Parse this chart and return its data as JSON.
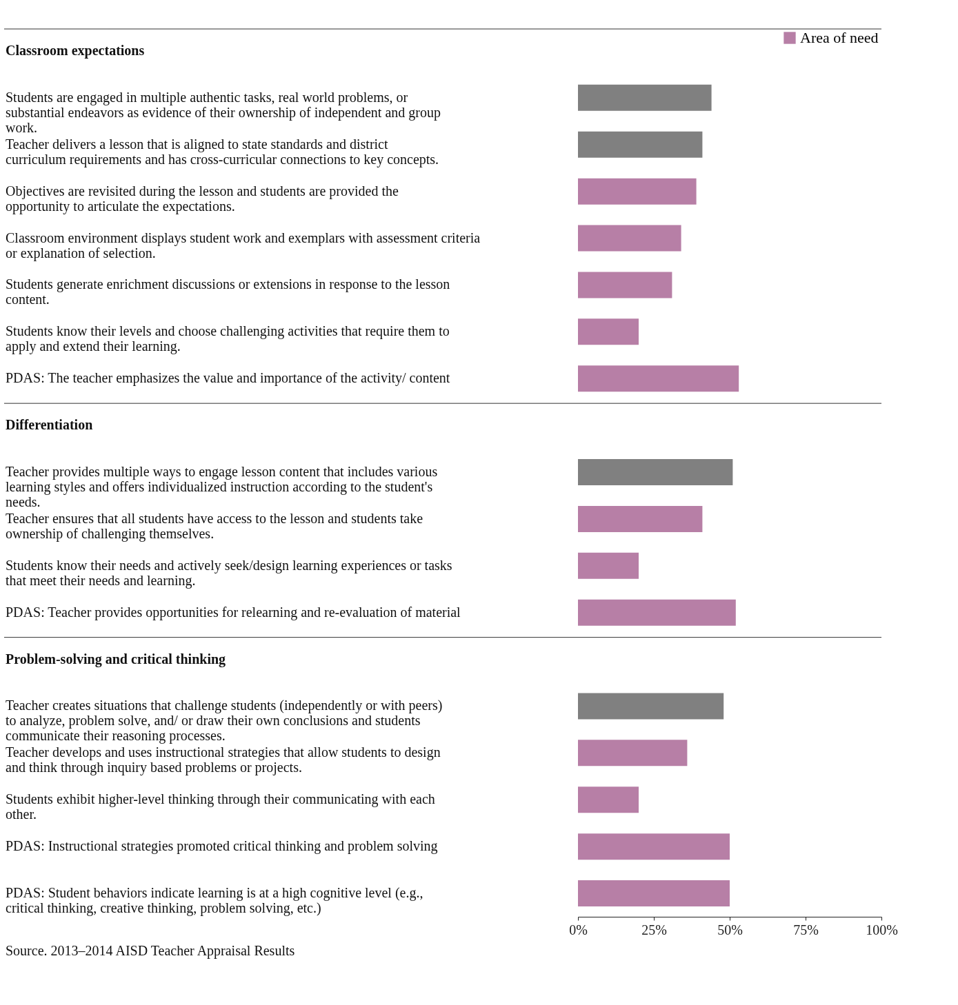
{
  "chart_data": {
    "type": "bar",
    "orientation": "horizontal",
    "legend": "top right",
    "grid": false,
    "categories": [
      "Classroom expectations",
      "Students are engaged in multiple authentic tasks, real world problems, or substantial endeavors as evidence of their ownership of independent and group work.",
      "Teacher delivers a lesson that is aligned to state standards and district curriculum requirements and has cross-curricular connections to key concepts.",
      "Objectives are revisited during the lesson and students are provided the opportunity to articulate the expectations.",
      "Classroom environment displays student work and exemplars with assessment criteria or explanation of selection.",
      "Students generate enrichment discussions or extensions in response to the lesson content.",
      "Students know their levels and choose challenging activities that require them to apply and extend their learning.",
      "PDAS: The teacher emphasizes the value and importance of the activity/ content",
      "Differentiation",
      "Teacher provides multiple ways to engage lesson content that includes various learning styles and offers individualized instruction according to the student's needs.",
      "Teacher ensures that all students have access to the lesson and students take ownership of challenging themselves.",
      "Students know their needs and actively seek/design learning experiences or tasks that meet their needs and learning.",
      "PDAS: Teacher provides opportunities for relearning and re-evaluation of material",
      "Problem-solving and critical thinking",
      "Teacher creates situations that challenge students (independently or with peers) to analyze, problem solve, and/ or draw their own conclusions and students communicate their reasoning processes.",
      "Teacher develops and uses instructional strategies that allow students to design and think through inquiry based problems or projects.",
      "Students exhibit higher-level thinking through their communicating with each other.",
      "PDAS: Instructional strategies promoted critical thinking and problem solving",
      "PDAS: Student behaviors indicate learning is at a high cognitive level (e.g., critical thinking, creative thinking, problem solving, etc.)"
    ],
    "series": [
      {
        "color": "#808080",
        "values": [
          null,
          44,
          41,
          null,
          null,
          null,
          null,
          null,
          null,
          51,
          null,
          null,
          null,
          null,
          48,
          null,
          null,
          null,
          null
        ]
      },
      {
        "name": "Area of need",
        "color": "#b77fa6",
        "values": [
          null,
          null,
          null,
          39,
          34,
          31,
          20,
          53,
          null,
          null,
          41,
          20,
          52,
          null,
          null,
          36,
          20,
          50,
          50
        ]
      }
    ],
    "xlim": [
      0,
      100
    ],
    "xticks": [
      {
        "value": 0,
        "label": "0%"
      },
      {
        "value": 25,
        "label": "25%"
      },
      {
        "value": 50,
        "label": "50%"
      },
      {
        "value": 75,
        "label": "75%"
      },
      {
        "value": 100,
        "label": "100%"
      }
    ],
    "annotations": [
      "Source. 2013–2014 AISD Teacher Appraisal Results"
    ]
  }
}
